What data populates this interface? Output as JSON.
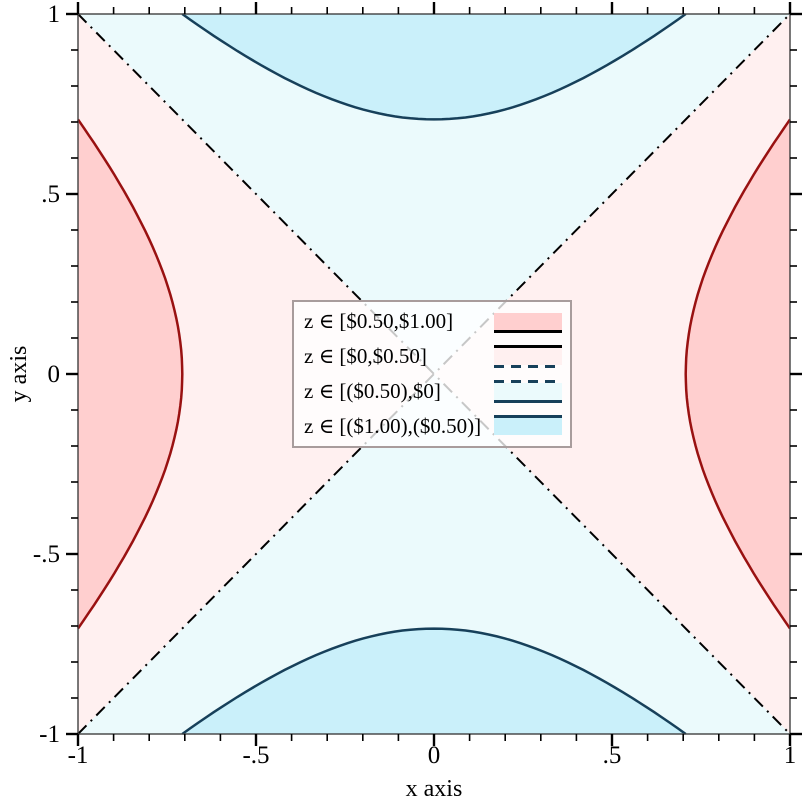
{
  "chart_data": {
    "type": "contour-intervals",
    "function": "z = x^2 - y^2 (saddle, hyperbolic level sets)",
    "xlabel": "x axis",
    "ylabel": "y axis",
    "x_range": [
      -1,
      1
    ],
    "y_range": [
      -1,
      1
    ],
    "grid": false,
    "x_ticks": {
      "major_values": [
        -1,
        -0.5,
        0,
        0.5,
        1
      ],
      "major_labels": [
        "-1",
        "-.5",
        "0",
        ".5",
        "1"
      ],
      "minor_step": 0.1
    },
    "y_ticks": {
      "major_values": [
        -1,
        -0.5,
        0,
        0.5,
        1
      ],
      "major_labels": [
        "-1",
        "-.5",
        "0",
        ".5",
        "1"
      ],
      "minor_step": 0.1
    },
    "contours": [
      {
        "z": 0.5,
        "label": "$0.50",
        "color": "#991111",
        "style": "solid",
        "width": 2.5
      },
      {
        "z": 0,
        "label": "$0",
        "color": "#000000",
        "style": "dash-dot",
        "width": 2
      },
      {
        "z": -0.5,
        "label": "($0.50)",
        "color": "#17405a",
        "style": "solid",
        "width": 2.5
      }
    ],
    "intervals": [
      {
        "label": "z ∈ [$0.50,$1.00]",
        "z_min": 0.5,
        "z_max": 1,
        "fill": "#ffcfcf"
      },
      {
        "label": "z ∈ [$0,$0.50]",
        "z_min": 0,
        "z_max": 0.5,
        "fill": "#fff0f0"
      },
      {
        "label": "z ∈ [($0.50),$0]",
        "z_min": -0.5,
        "z_max": 0,
        "fill": "#ebfafc"
      },
      {
        "label": "z ∈ [($1.00),($0.50)]",
        "z_min": -1,
        "z_max": -0.5,
        "fill": "#caf0fa"
      }
    ],
    "legend": {
      "position": "center",
      "background": "#ffffff",
      "background_opacity": 0.78,
      "border_color": "#a89c9c",
      "entries": [
        {
          "label": "z ∈ [$0.50,$1.00]",
          "fill": "#ffcfcf",
          "top_line": {
            "style": "none",
            "color": ""
          },
          "bottom_line": {
            "style": "solid",
            "color": "#000000"
          }
        },
        {
          "label": "z ∈ [$0,$0.50]",
          "fill": "#fff0f0",
          "top_line": {
            "style": "solid",
            "color": "#000000"
          },
          "bottom_line": {
            "style": "dashed",
            "color": "#17405a"
          }
        },
        {
          "label": "z ∈ [($0.50),$0]",
          "fill": "#ebfafc",
          "top_line": {
            "style": "dashed",
            "color": "#17405a"
          },
          "bottom_line": {
            "style": "solid",
            "color": "#17405a"
          }
        },
        {
          "label": "z ∈ [($1.00),($0.50)]",
          "fill": "#caf0fa",
          "top_line": {
            "style": "solid",
            "color": "#17405a"
          },
          "bottom_line": {
            "style": "none",
            "color": ""
          }
        }
      ]
    },
    "frame_color": "#404040",
    "tick_color": "#000000"
  }
}
